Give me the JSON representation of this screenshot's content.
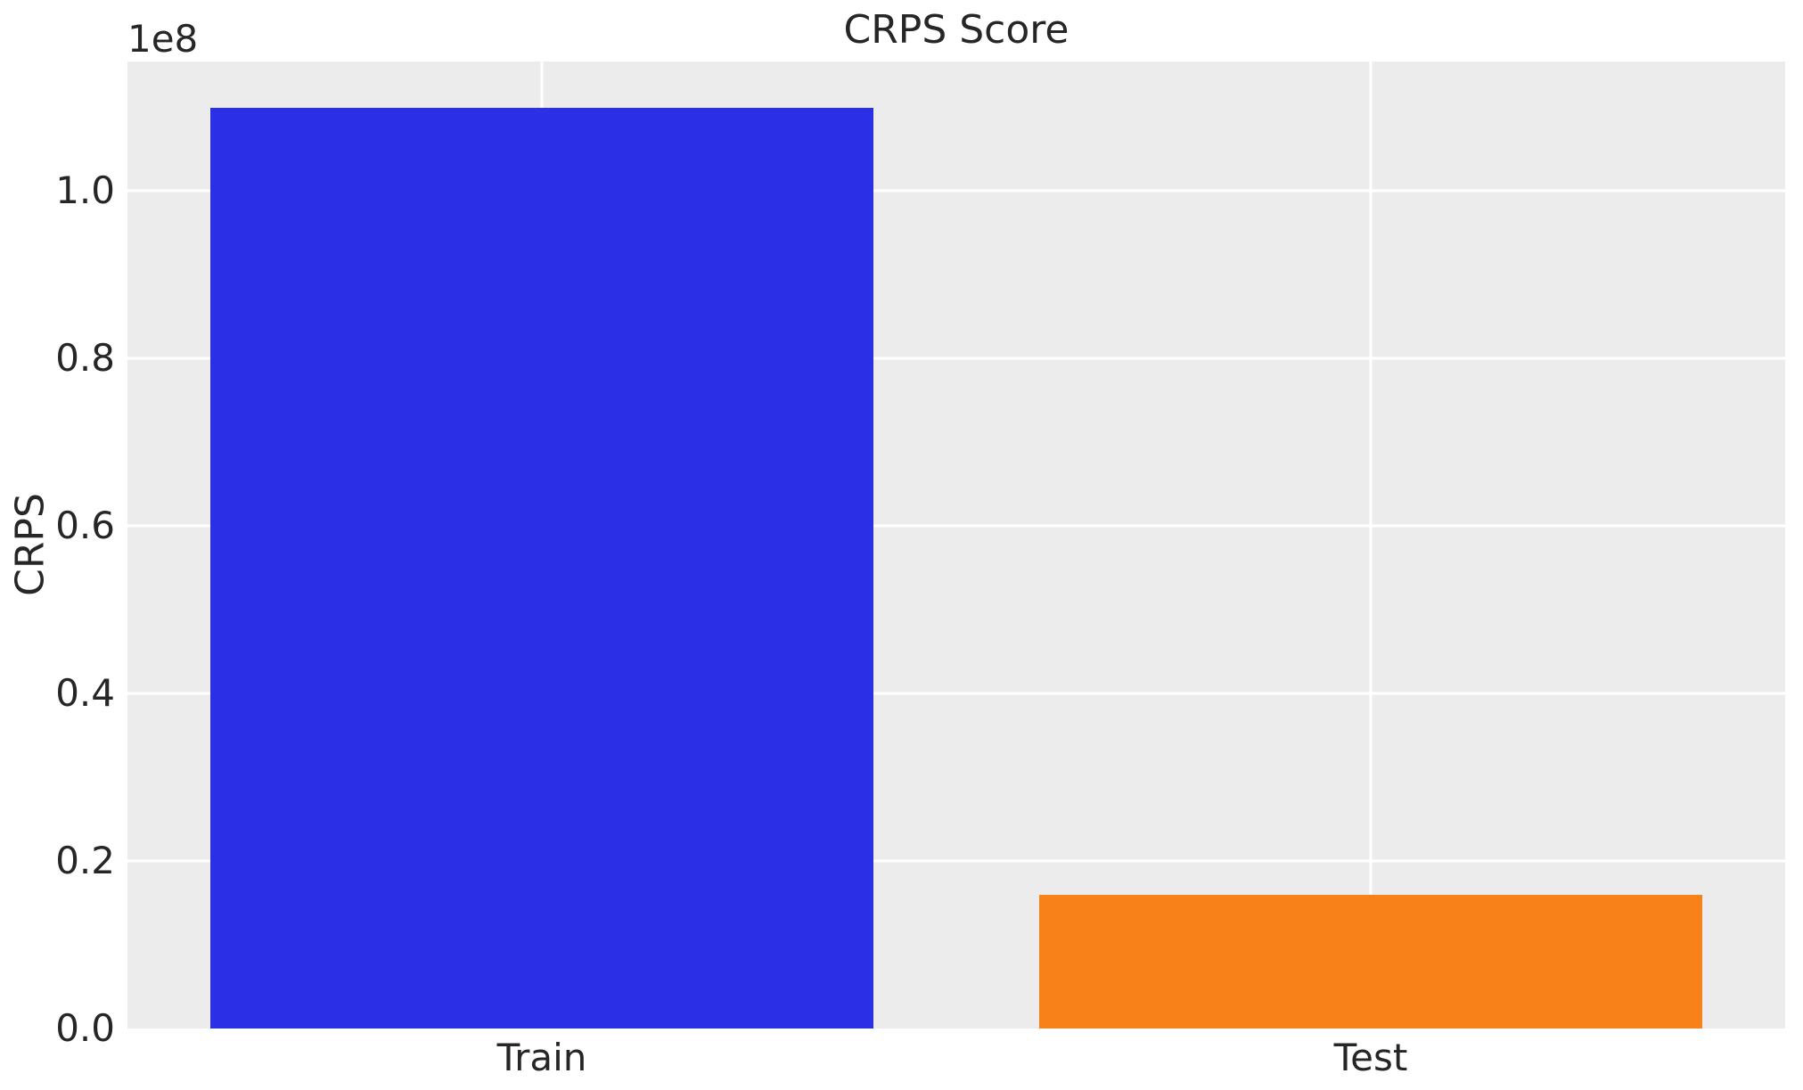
{
  "figure": {
    "title": "CRPS Score",
    "ylabel": "CRPS",
    "offset_label": "1e8"
  },
  "colors": {
    "axes_background": "#ececec",
    "gridline": "#ffffff",
    "text": "#262626",
    "train_bar": "#2b2fe6",
    "test_bar": "#f8811a"
  },
  "chart_data": {
    "type": "bar",
    "title": "CRPS Score",
    "xlabel": "",
    "ylabel": "CRPS",
    "categories": [
      "Train",
      "Test"
    ],
    "values": [
      109900000,
      16000000
    ],
    "bar_colors": [
      "#2b2fe6",
      "#f8811a"
    ],
    "bar_width_fraction": 0.8,
    "ylim": [
      0,
      115400000
    ],
    "y_multiplier": 100000000,
    "offset_label": "1e8",
    "yticks": [
      0.0,
      0.2,
      0.4,
      0.6,
      0.8,
      1.0
    ],
    "ytick_labels": [
      "0.0",
      "0.2",
      "0.4",
      "0.6",
      "0.8",
      "1.0"
    ],
    "grid": true,
    "legend": false
  }
}
